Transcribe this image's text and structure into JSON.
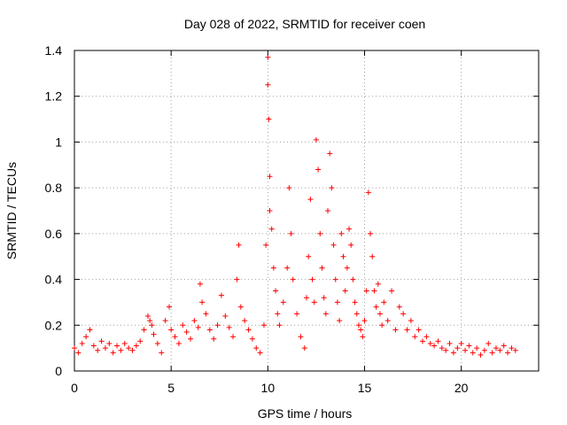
{
  "chart_data": {
    "type": "scatter",
    "title": "Day 028 of 2022, SRMTID for receiver coen",
    "xlabel": "GPS time / hours",
    "ylabel": "SRMTID / TECUs",
    "xlim": [
      0,
      24
    ],
    "ylim": [
      0,
      1.4
    ],
    "x_ticks": [
      0,
      5,
      10,
      15,
      20
    ],
    "x_tick_labels": [
      "0",
      "5",
      "10",
      "15",
      "20"
    ],
    "y_ticks": [
      0,
      0.2,
      0.4,
      0.6,
      0.8,
      1.0,
      1.2,
      1.4
    ],
    "y_tick_labels": [
      "0",
      "0.2",
      "0.4",
      "0.6",
      "0.8",
      "1",
      "1.2",
      "1.4"
    ],
    "grid": true,
    "marker": "+",
    "series": [
      {
        "name": "SRMTID",
        "color": "#ff0000",
        "x": [
          0.0,
          0.2,
          0.4,
          0.6,
          0.8,
          1.0,
          1.2,
          1.4,
          1.6,
          1.8,
          2.0,
          2.2,
          2.4,
          2.6,
          2.8,
          3.0,
          3.2,
          3.4,
          3.6,
          3.8,
          3.9,
          4.0,
          4.1,
          4.3,
          4.5,
          4.7,
          4.9,
          5.0,
          5.2,
          5.4,
          5.6,
          5.8,
          6.0,
          6.2,
          6.4,
          6.5,
          6.6,
          6.8,
          7.0,
          7.2,
          7.4,
          7.6,
          7.8,
          8.0,
          8.2,
          8.4,
          8.5,
          8.6,
          8.8,
          9.0,
          9.2,
          9.4,
          9.6,
          9.8,
          9.9,
          10.0,
          10.0,
          10.05,
          10.1,
          10.1,
          10.2,
          10.3,
          10.4,
          10.5,
          10.6,
          10.8,
          11.0,
          11.1,
          11.2,
          11.3,
          11.5,
          11.7,
          11.9,
          12.0,
          12.1,
          12.2,
          12.3,
          12.4,
          12.5,
          12.6,
          12.7,
          12.8,
          12.9,
          13.0,
          13.1,
          13.2,
          13.3,
          13.4,
          13.5,
          13.6,
          13.7,
          13.8,
          13.9,
          14.0,
          14.1,
          14.2,
          14.3,
          14.4,
          14.5,
          14.6,
          14.7,
          14.8,
          14.9,
          15.0,
          15.1,
          15.2,
          15.3,
          15.4,
          15.5,
          15.6,
          15.7,
          15.8,
          15.9,
          16.0,
          16.2,
          16.4,
          16.6,
          16.8,
          17.0,
          17.2,
          17.4,
          17.6,
          17.8,
          18.0,
          18.2,
          18.4,
          18.6,
          18.8,
          19.0,
          19.2,
          19.4,
          19.6,
          19.8,
          20.0,
          20.2,
          20.4,
          20.6,
          20.8,
          21.0,
          21.2,
          21.4,
          21.6,
          21.8,
          22.0,
          22.2,
          22.4,
          22.6,
          22.8
        ],
        "y": [
          0.1,
          0.08,
          0.12,
          0.15,
          0.18,
          0.11,
          0.09,
          0.13,
          0.1,
          0.12,
          0.08,
          0.11,
          0.09,
          0.12,
          0.1,
          0.09,
          0.11,
          0.13,
          0.18,
          0.24,
          0.22,
          0.2,
          0.16,
          0.12,
          0.08,
          0.22,
          0.28,
          0.18,
          0.15,
          0.12,
          0.2,
          0.17,
          0.14,
          0.22,
          0.19,
          0.38,
          0.3,
          0.25,
          0.18,
          0.14,
          0.2,
          0.33,
          0.24,
          0.19,
          0.15,
          0.4,
          0.55,
          0.28,
          0.22,
          0.18,
          0.14,
          0.1,
          0.08,
          0.2,
          0.55,
          1.37,
          1.25,
          1.1,
          0.85,
          0.7,
          0.62,
          0.45,
          0.35,
          0.25,
          0.2,
          0.3,
          0.45,
          0.8,
          0.6,
          0.4,
          0.25,
          0.15,
          0.1,
          0.32,
          0.5,
          0.75,
          0.4,
          0.3,
          1.01,
          0.88,
          0.6,
          0.45,
          0.32,
          0.25,
          0.7,
          0.95,
          0.8,
          0.55,
          0.4,
          0.3,
          0.22,
          0.6,
          0.5,
          0.35,
          0.45,
          0.62,
          0.55,
          0.4,
          0.3,
          0.25,
          0.2,
          0.18,
          0.15,
          0.22,
          0.35,
          0.78,
          0.6,
          0.5,
          0.35,
          0.28,
          0.38,
          0.25,
          0.2,
          0.3,
          0.22,
          0.35,
          0.18,
          0.28,
          0.25,
          0.18,
          0.22,
          0.15,
          0.18,
          0.13,
          0.15,
          0.12,
          0.11,
          0.13,
          0.1,
          0.09,
          0.12,
          0.08,
          0.1,
          0.12,
          0.09,
          0.11,
          0.08,
          0.1,
          0.07,
          0.09,
          0.12,
          0.08,
          0.1,
          0.09,
          0.11,
          0.08,
          0.1,
          0.09
        ]
      }
    ]
  }
}
